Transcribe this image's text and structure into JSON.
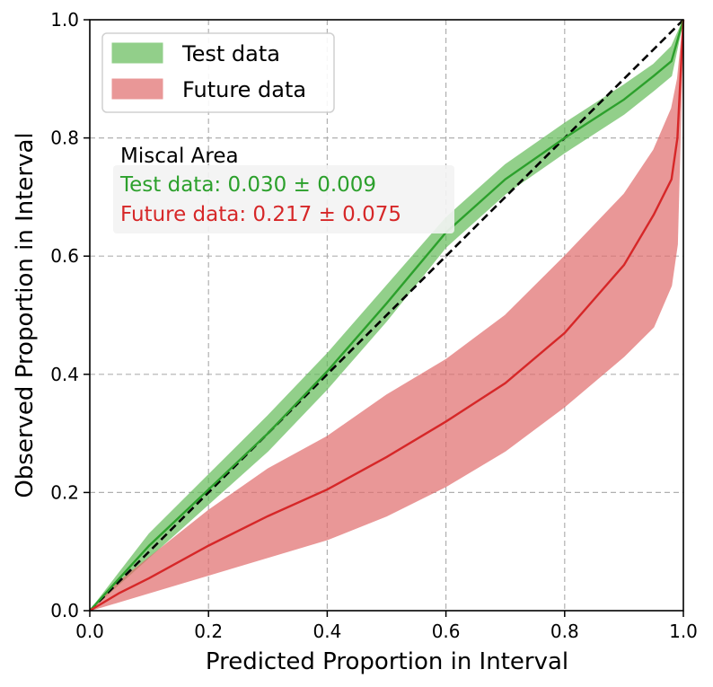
{
  "chart_data": {
    "type": "line",
    "title": "",
    "xlabel": "Predicted Proportion in Interval",
    "ylabel": "Observed Proportion in Interval",
    "xlim": [
      0,
      1
    ],
    "ylim": [
      0,
      1
    ],
    "grid": true,
    "legend_position": "top-left",
    "x_ticks": [
      "0.0",
      "0.2",
      "0.4",
      "0.6",
      "0.8",
      "1.0"
    ],
    "y_ticks": [
      "0.0",
      "0.2",
      "0.4",
      "0.6",
      "0.8",
      "1.0"
    ],
    "reference_line": {
      "name": "ideal",
      "x": [
        0,
        1
      ],
      "y": [
        0,
        1
      ],
      "color": "#000000"
    },
    "series": [
      {
        "name": "Test data",
        "line_color": "#2ca02c",
        "band_color": "#64bc5a",
        "x": [
          0,
          0.05,
          0.1,
          0.2,
          0.3,
          0.4,
          0.5,
          0.6,
          0.7,
          0.8,
          0.9,
          0.95,
          0.98,
          1.0
        ],
        "y": [
          0,
          0.055,
          0.11,
          0.205,
          0.3,
          0.405,
          0.52,
          0.64,
          0.73,
          0.8,
          0.865,
          0.905,
          0.93,
          1.0
        ],
        "lower": [
          0,
          0.045,
          0.09,
          0.18,
          0.27,
          0.375,
          0.49,
          0.615,
          0.705,
          0.775,
          0.84,
          0.88,
          0.905,
          1.0
        ],
        "upper": [
          0,
          0.065,
          0.13,
          0.23,
          0.33,
          0.435,
          0.55,
          0.665,
          0.755,
          0.825,
          0.89,
          0.925,
          0.955,
          1.0
        ]
      },
      {
        "name": "Future data",
        "line_color": "#d62728",
        "band_color": "#e06c6c",
        "x": [
          0,
          0.05,
          0.1,
          0.2,
          0.3,
          0.4,
          0.5,
          0.6,
          0.7,
          0.8,
          0.9,
          0.95,
          0.98,
          0.99,
          1.0
        ],
        "y": [
          0,
          0.03,
          0.055,
          0.11,
          0.16,
          0.205,
          0.26,
          0.32,
          0.385,
          0.47,
          0.585,
          0.67,
          0.73,
          0.8,
          1.0
        ],
        "lower": [
          0,
          0.015,
          0.03,
          0.06,
          0.09,
          0.12,
          0.16,
          0.21,
          0.27,
          0.345,
          0.43,
          0.48,
          0.55,
          0.62,
          1.0
        ],
        "upper": [
          0,
          0.05,
          0.09,
          0.17,
          0.24,
          0.295,
          0.365,
          0.425,
          0.5,
          0.6,
          0.705,
          0.78,
          0.85,
          0.9,
          1.0
        ]
      }
    ],
    "annotation": {
      "title": "Miscal Area",
      "lines": [
        {
          "text": "Test data: 0.030 ± 0.009",
          "color": "#2ca02c"
        },
        {
          "text": "Future data: 0.217 ± 0.075",
          "color": "#d62728"
        }
      ]
    }
  }
}
